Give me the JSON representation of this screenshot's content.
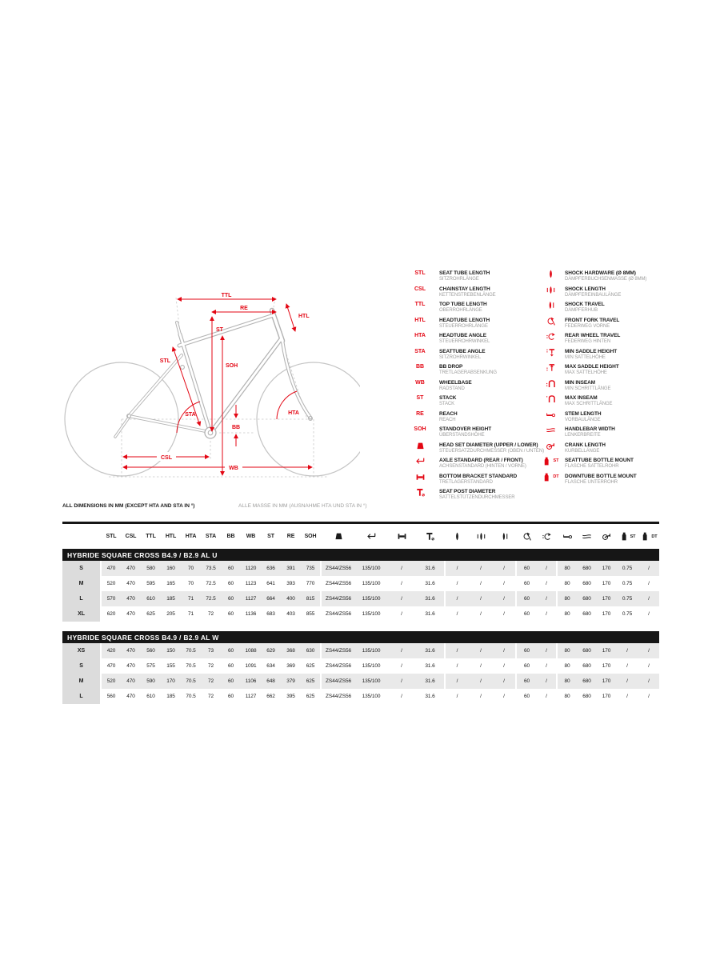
{
  "notes": {
    "en": "ALL DIMENSIONS IN MM (EXCEPT HTA AND STA IN °)",
    "de": "ALLE MASSE IN MM (AUSNAHME HTA UND STA IN °)"
  },
  "colors": {
    "accent": "#e30613",
    "band": "#161616",
    "row_gray": "#e9e9e9",
    "size_col_gray": "#dcdcdc",
    "muted_text": "#9d9d9c",
    "diagram_line": "#c4c4c4"
  },
  "diagram": {
    "labels": {
      "ttl": "TTL",
      "re": "RE",
      "st": "ST",
      "htl": "HTL",
      "stl": "STL",
      "soh": "SOH",
      "bb": "BB",
      "sta": "STA",
      "hta": "HTA",
      "csl": "CSL",
      "wb": "WB"
    }
  },
  "legend": {
    "left": [
      {
        "abbr": "STL",
        "en": "SEAT TUBE LENGTH",
        "de": "SITZROHRLÄNGE"
      },
      {
        "abbr": "CSL",
        "en": "CHAINSTAY LENGTH",
        "de": "KETTENSTREBENLÄNGE"
      },
      {
        "abbr": "TTL",
        "en": "TOP TUBE LENGTH",
        "de": "OBERROHRLÄNGE"
      },
      {
        "abbr": "HTL",
        "en": "HEADTUBE LENGTH",
        "de": "STEUERROHRLÄNGE"
      },
      {
        "abbr": "HTA",
        "en": "HEADTUBE ANGLE",
        "de": "STEUERROHRWINKEL"
      },
      {
        "abbr": "STA",
        "en": "SEATTUBE ANGLE",
        "de": "SITZROHRWINKEL"
      },
      {
        "abbr": "BB",
        "en": "BB DROP",
        "de": "TRETLAGERABSENKUNG"
      },
      {
        "abbr": "WB",
        "en": "WHEELBASE",
        "de": "RADSTAND"
      },
      {
        "abbr": "ST",
        "en": "STACK",
        "de": "STACK"
      },
      {
        "abbr": "RE",
        "en": "REACH",
        "de": "REACH"
      },
      {
        "abbr": "SOH",
        "en": "STANDOVER HEIGHT",
        "de": "ÜBERSTANDSHÖHE"
      },
      {
        "icon": "headset-icon",
        "en": "HEAD SET DIAMETER (UPPER / LOWER)",
        "de": "STEUERSATZDURCHMESSER (OBEN / UNTEN)"
      },
      {
        "icon": "axle-icon",
        "en": "AXLE STANDARD (REAR / FRONT)",
        "de": "ACHSENSTANDARD (HINTEN / VORNE)"
      },
      {
        "icon": "bbstd-icon",
        "en": "BOTTOM BRACKET STANDARD",
        "de": "TRETLAGERSTANDARD"
      },
      {
        "icon": "seatpost-icon",
        "en": "SEAT POST DIAMETER",
        "de": "SATTELSTÜTZENDURCHMESSER"
      }
    ],
    "right": [
      {
        "icon": "shock-hw-icon",
        "en": "SHOCK HARDWARE (Ø 8MM)",
        "de": "DÄMPFERBUCHSENMASSE (Ø 8MM)"
      },
      {
        "icon": "shock-len-icon",
        "en": "SHOCK LENGTH",
        "de": "DÄMPFEREINBAULÄNGE"
      },
      {
        "icon": "shock-travel-icon",
        "en": "SHOCK TRAVEL",
        "de": "DÄMPFERHUB"
      },
      {
        "icon": "fork-travel-icon",
        "en": "FRONT FORK TRAVEL",
        "de": "FEDERWEG VORNE"
      },
      {
        "icon": "rear-travel-icon",
        "en": "REAR WHEEL TRAVEL",
        "de": "FEDERWEG HINTEN"
      },
      {
        "icon": "saddle-min-icon",
        "en": "MIN SADDLE HEIGHT",
        "de": "MIN SATTELHÖHE"
      },
      {
        "icon": "saddle-max-icon",
        "en": "MAX SADDLE HEIGHT",
        "de": "MAX SATTELHÖHE"
      },
      {
        "icon": "inseam-min-icon",
        "en": "MIN INSEAM",
        "de": "MIN SCHRITTLÄNGE"
      },
      {
        "icon": "inseam-max-icon",
        "en": "MAX INSEAM",
        "de": "MAX SCHRITTLÄNGE"
      },
      {
        "icon": "stem-icon",
        "en": "STEM LENGTH",
        "de": "VORBAULÄNGE"
      },
      {
        "icon": "handlebar-icon",
        "en": "HANDLEBAR WIDTH",
        "de": "LENKERBREITE"
      },
      {
        "icon": "crank-icon",
        "en": "CRANK LENGTH",
        "de": "KURBELLÄNGE"
      },
      {
        "icon": "bottle-icon",
        "suffix": "ST",
        "en": "SEATTUBE BOTTLE MOUNT",
        "de": "FLASCHE SATTELROHR"
      },
      {
        "icon": "bottle-icon",
        "suffix": "DT",
        "en": "DOWNTUBE BOTTLE MOUNT",
        "de": "FLASCHE UNTERROHR"
      }
    ]
  },
  "table": {
    "columns": [
      {
        "label": "STL"
      },
      {
        "label": "CSL"
      },
      {
        "label": "TTL"
      },
      {
        "label": "HTL"
      },
      {
        "label": "HTA"
      },
      {
        "label": "STA"
      },
      {
        "label": "BB"
      },
      {
        "label": "WB"
      },
      {
        "label": "ST"
      },
      {
        "label": "RE"
      },
      {
        "label": "SOH"
      },
      {
        "icon": "headset-icon"
      },
      {
        "icon": "axle-icon"
      },
      {
        "icon": "bbstd-icon"
      },
      {
        "icon": "seatpost-icon"
      },
      {
        "icon": "shock-hw-icon"
      },
      {
        "icon": "shock-len-icon"
      },
      {
        "icon": "shock-travel-icon"
      },
      {
        "icon": "fork-travel-icon"
      },
      {
        "icon": "rear-travel-icon"
      },
      {
        "icon": "stem-icon"
      },
      {
        "icon": "handlebar-icon"
      },
      {
        "icon": "crank-icon"
      },
      {
        "icon": "bottle-icon",
        "suffix": "ST"
      },
      {
        "icon": "bottle-icon",
        "suffix": "DT"
      }
    ],
    "sections": [
      {
        "title": "HYBRIDE SQUARE CROSS B4.9 / B2.9 AL U",
        "rows": [
          {
            "size": "S",
            "values": [
              "470",
              "470",
              "580",
              "160",
              "70",
              "73.5",
              "60",
              "1120",
              "636",
              "391",
              "735",
              "ZS44/ZS56",
              "135/100",
              "/",
              "31.6",
              "/",
              "/",
              "/",
              "60",
              "/",
              "80",
              "680",
              "170",
              "0.75",
              "/"
            ]
          },
          {
            "size": "M",
            "values": [
              "520",
              "470",
              "595",
              "165",
              "70",
              "72.5",
              "60",
              "1123",
              "641",
              "393",
              "770",
              "ZS44/ZS56",
              "135/100",
              "/",
              "31.6",
              "/",
              "/",
              "/",
              "60",
              "/",
              "80",
              "680",
              "170",
              "0.75",
              "/"
            ]
          },
          {
            "size": "L",
            "values": [
              "570",
              "470",
              "610",
              "185",
              "71",
              "72.5",
              "60",
              "1127",
              "664",
              "400",
              "815",
              "ZS44/ZS56",
              "135/100",
              "/",
              "31.6",
              "/",
              "/",
              "/",
              "60",
              "/",
              "80",
              "680",
              "170",
              "0.75",
              "/"
            ]
          },
          {
            "size": "XL",
            "values": [
              "620",
              "470",
              "625",
              "205",
              "71",
              "72",
              "60",
              "1136",
              "683",
              "403",
              "855",
              "ZS44/ZS56",
              "135/100",
              "/",
              "31.6",
              "/",
              "/",
              "/",
              "60",
              "/",
              "80",
              "680",
              "170",
              "0.75",
              "/"
            ]
          }
        ]
      },
      {
        "title": "HYBRIDE SQUARE CROSS B4.9 / B2.9 AL W",
        "rows": [
          {
            "size": "XS",
            "values": [
              "420",
              "470",
              "560",
              "150",
              "70.5",
              "73",
              "60",
              "1088",
              "629",
              "368",
              "630",
              "ZS44/ZS56",
              "135/100",
              "/",
              "31.6",
              "/",
              "/",
              "/",
              "60",
              "/",
              "80",
              "680",
              "170",
              "/",
              "/"
            ]
          },
          {
            "size": "S",
            "values": [
              "470",
              "470",
              "575",
              "155",
              "70.5",
              "72",
              "60",
              "1091",
              "634",
              "369",
              "625",
              "ZS44/ZS56",
              "135/100",
              "/",
              "31.6",
              "/",
              "/",
              "/",
              "60",
              "/",
              "80",
              "680",
              "170",
              "/",
              "/"
            ]
          },
          {
            "size": "M",
            "values": [
              "520",
              "470",
              "590",
              "170",
              "70.5",
              "72",
              "60",
              "1106",
              "648",
              "379",
              "625",
              "ZS44/ZS56",
              "135/100",
              "/",
              "31.6",
              "/",
              "/",
              "/",
              "60",
              "/",
              "80",
              "680",
              "170",
              "/",
              "/"
            ]
          },
          {
            "size": "L",
            "values": [
              "560",
              "470",
              "610",
              "185",
              "70.5",
              "72",
              "60",
              "1127",
              "662",
              "395",
              "625",
              "ZS44/ZS56",
              "135/100",
              "/",
              "31.6",
              "/",
              "/",
              "/",
              "60",
              "/",
              "80",
              "680",
              "170",
              "/",
              "/"
            ]
          }
        ]
      }
    ]
  }
}
